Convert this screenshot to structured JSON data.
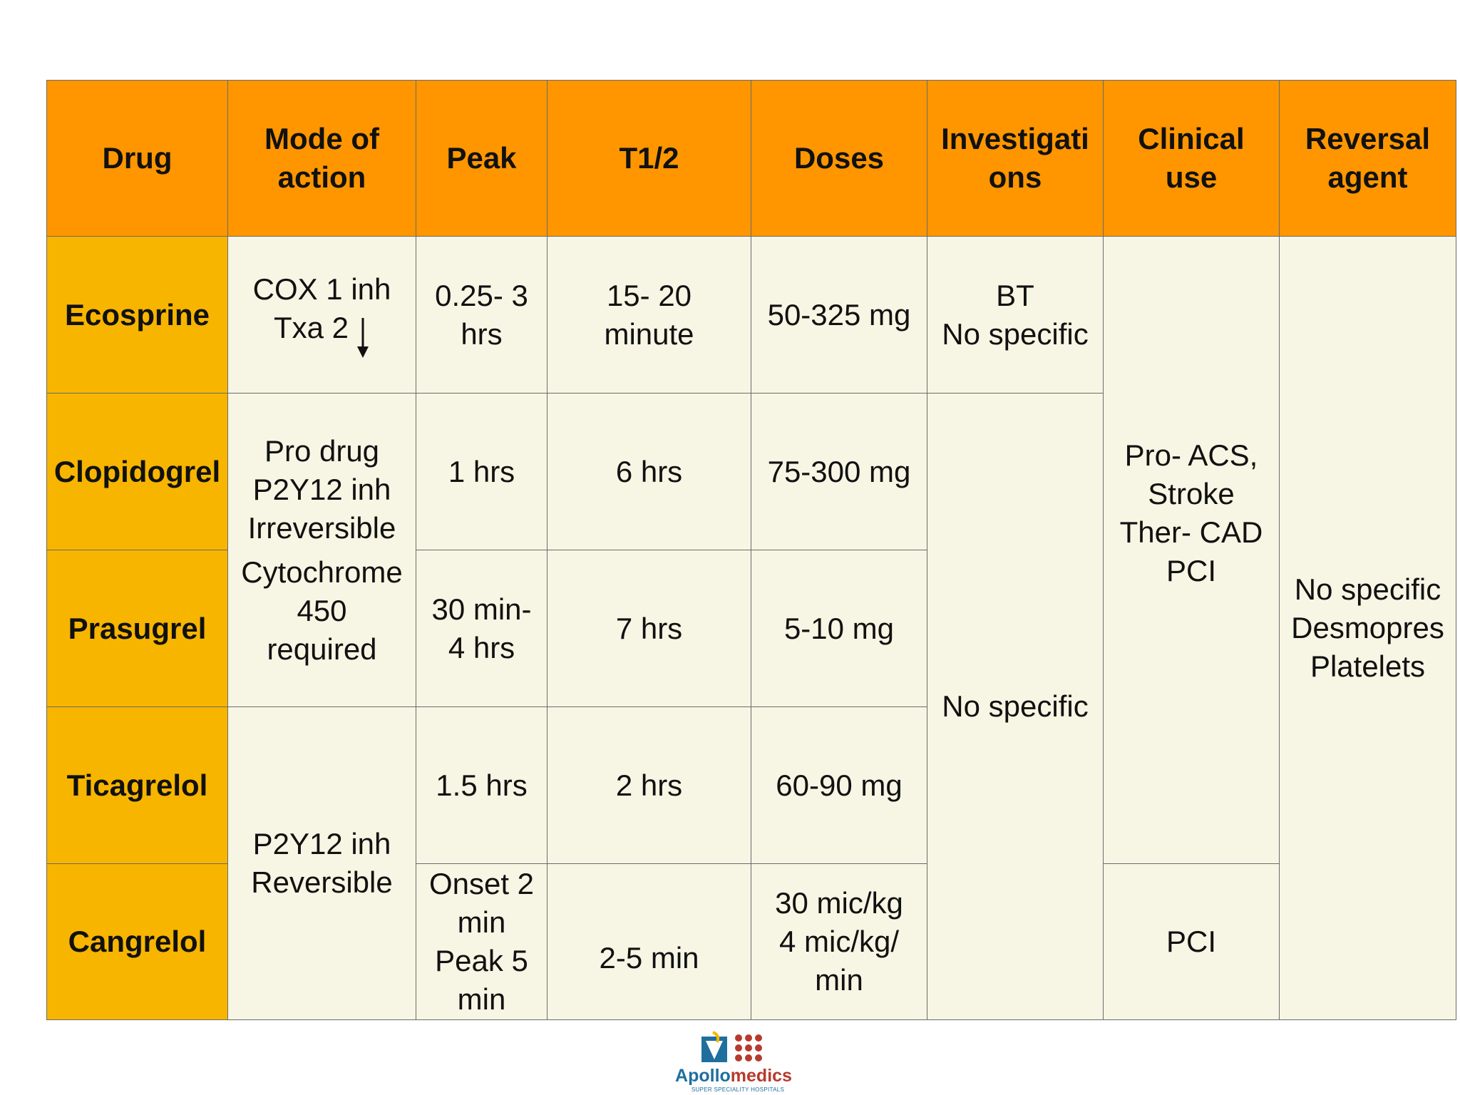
{
  "headers": {
    "drug": [
      "Drug"
    ],
    "mode": [
      "Mode of",
      "action"
    ],
    "peak": [
      "Peak"
    ],
    "thalf": [
      "T1/2"
    ],
    "doses": [
      "Doses"
    ],
    "investigations": [
      "Investigati",
      "ons"
    ],
    "clinical": [
      "Clinical",
      "use"
    ],
    "reversal": [
      "Reversal",
      "agent"
    ]
  },
  "rows": [
    {
      "drug": "Ecosprine",
      "mode": [
        "COX 1 inh",
        "Txa 2"
      ],
      "peak": [
        "0.25- 3",
        "hrs"
      ],
      "thalf": [
        "15- 20",
        "minute"
      ],
      "doses": [
        "50-325 mg"
      ],
      "investigations": [
        "BT",
        "No specific"
      ]
    },
    {
      "drug": "Clopidogrel",
      "peak": [
        "1 hrs"
      ],
      "thalf": [
        "6 hrs"
      ],
      "doses": [
        "75-300 mg"
      ]
    },
    {
      "drug": "Prasugrel",
      "peak": [
        "30 min-",
        "4 hrs"
      ],
      "thalf": [
        "7 hrs"
      ],
      "doses": [
        "5-10 mg"
      ]
    },
    {
      "drug": "Ticagrelol",
      "peak": [
        "1.5 hrs"
      ],
      "thalf": [
        "2 hrs"
      ],
      "doses": [
        "60-90 mg"
      ]
    },
    {
      "drug": "Cangrelol",
      "peak": [
        "Onset 2",
        "min",
        "Peak 5",
        "min"
      ],
      "thalf": [
        "2-5 min"
      ],
      "doses": [
        "30 mic/kg",
        "4 mic/kg/",
        "min"
      ]
    }
  ],
  "merged": {
    "mode_clop_pras": [
      "Pro drug",
      "P2Y12 inh",
      "Irreversible",
      "",
      "Cytochrome",
      "450",
      "required"
    ],
    "mode_tica_cang": [
      "P2Y12 inh",
      "Reversible"
    ],
    "investigations_rest": [
      "No specific"
    ],
    "clinical_main": [
      "Pro- ACS,",
      "Stroke",
      "Ther- CAD",
      "PCI"
    ],
    "clinical_cang": [
      "PCI"
    ],
    "reversal_all": [
      "No specific",
      "Desmopres",
      "Platelets"
    ]
  },
  "icons": {
    "down_arrow": "down-arrow-icon",
    "logo": "apollomedics-logo-icon"
  },
  "logo": {
    "word_a": "Apollo",
    "word_b": "medics",
    "tagline": "SUPER SPECIALITY HOSPITALS"
  },
  "colors": {
    "header_bg": "#ff9600",
    "drug_bg": "#f7b500",
    "cell_bg": "#f7f6e4",
    "border": "#6b6b6b"
  }
}
